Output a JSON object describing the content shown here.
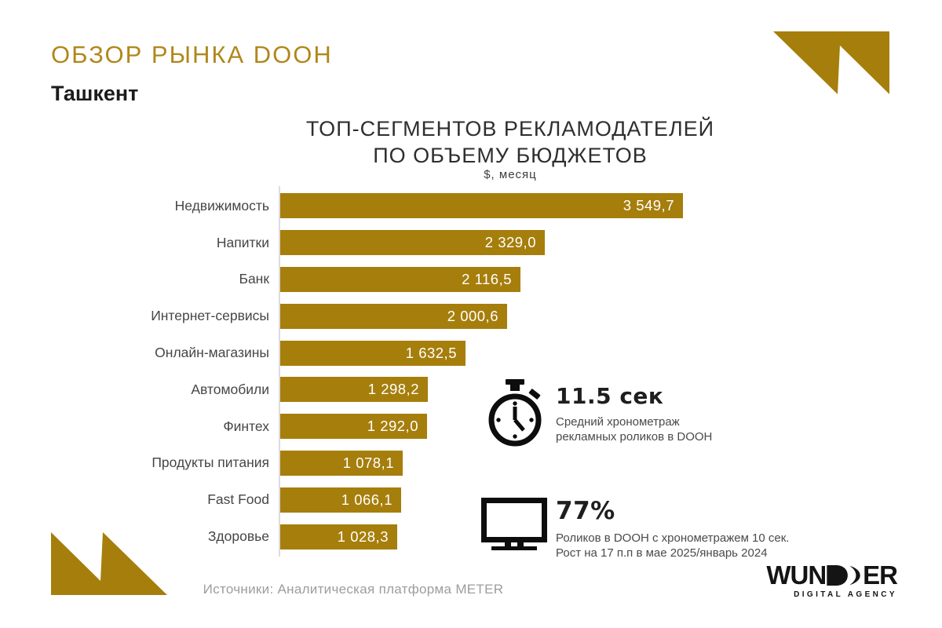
{
  "header": {
    "title": "ОБЗОР РЫНКА DOOH",
    "subtitle": "Ташкент"
  },
  "chart_data": {
    "type": "bar",
    "orientation": "horizontal",
    "title": "ТОП-СЕГМЕНТОВ РЕКЛАМОДАТЕЛЕЙ ПО ОБЪЕМУ БЮДЖЕТОВ",
    "title_lines": [
      "ТОП-СЕГМЕНТОВ РЕКЛАМОДАТЕЛЕЙ",
      "ПО ОБЪЕМУ БЮДЖЕТОВ"
    ],
    "unit_label": "$, месяц",
    "categories": [
      "Недвижимость",
      "Напитки",
      "Банк",
      "Интернет-сервисы",
      "Онлайн-магазины",
      "Автомобили",
      "Финтех",
      "Продукты питания",
      "Fast Food",
      "Здоровье"
    ],
    "values": [
      3549.7,
      2329.0,
      2116.5,
      2000.6,
      1632.5,
      1298.2,
      1292.0,
      1078.1,
      1066.1,
      1028.3
    ],
    "value_labels": [
      "3 549,7",
      "2 329,0",
      "2 116,5",
      "2 000,6",
      "1 632,5",
      "1 298,2",
      "1 292,0",
      "1 078,1",
      "1 066,1",
      "1 028,3"
    ],
    "xlim": [
      0,
      3549.7
    ],
    "grid": false,
    "legend": false,
    "bar_color": "#A67E0C",
    "value_text_color": "#FFFFFF"
  },
  "stats": [
    {
      "icon": "stopwatch-icon",
      "value": "11.5 сек",
      "desc_lines": [
        "Средний хронометраж",
        "рекламных роликов в DOOH"
      ]
    },
    {
      "icon": "monitor-icon",
      "value": "77%",
      "desc_lines": [
        "Роликов в DOOH с хронометражем 10 сек.",
        "Рост на 17 п.п в мае 2025/январь 2024"
      ]
    }
  ],
  "footer": {
    "source": "Источники: Аналитическая платформа METER",
    "logo": {
      "part1": "WUN",
      "part2": "ER",
      "subtext": "DIGITAL AGENCY"
    }
  },
  "colors": {
    "gold": "#A67E0C",
    "title-gold": "#B1871B",
    "label-gray": "#464646",
    "text-gray": "#4A4A4A",
    "source-gray": "#9D9D9D",
    "axis-gray": "#DCDCDC",
    "value-white": "#FFFFFF"
  }
}
